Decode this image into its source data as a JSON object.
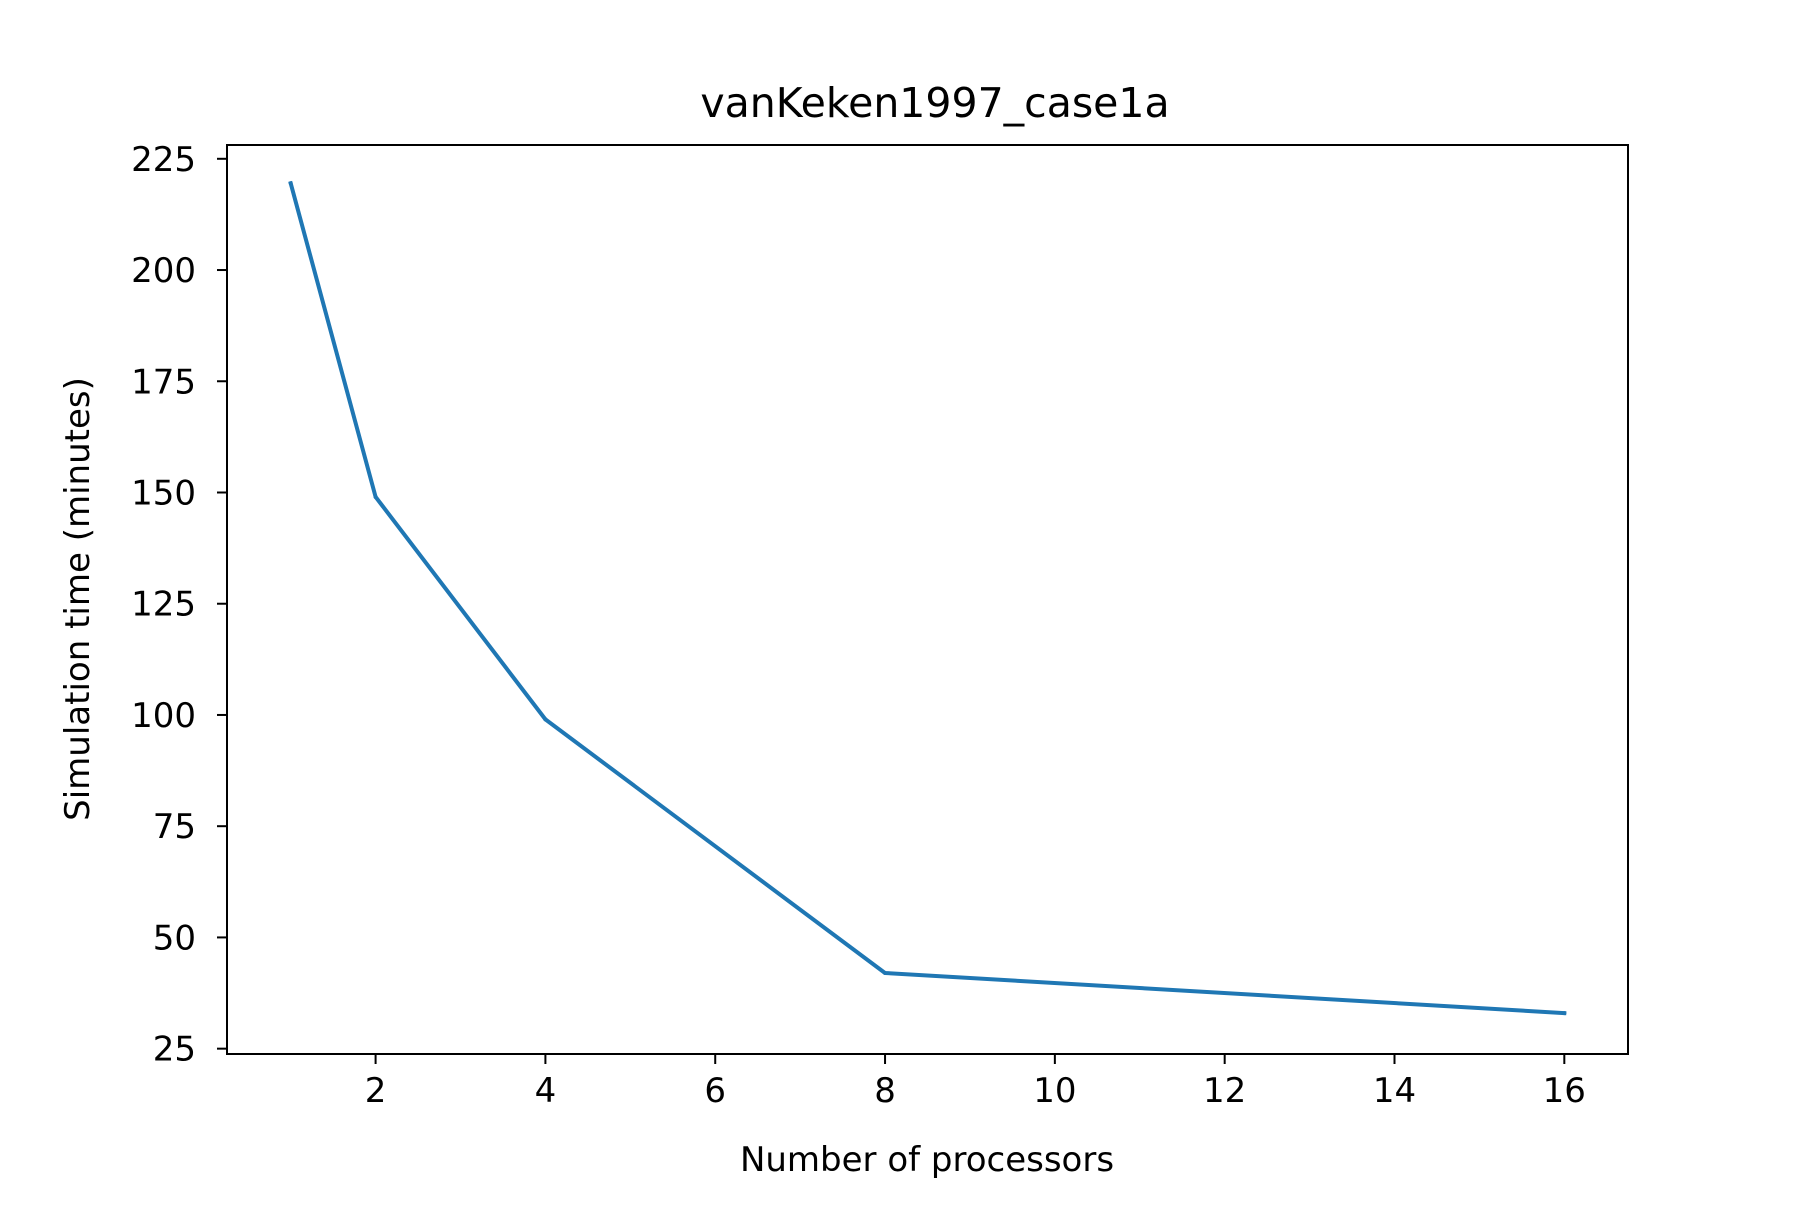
{
  "chart_data": {
    "type": "line",
    "title": "vanKeken1997_case1a",
    "xlabel": "Number of processors",
    "ylabel": "Simulation time (minutes)",
    "x_ticks": [
      2,
      4,
      6,
      8,
      10,
      12,
      14,
      16
    ],
    "y_ticks": [
      25,
      50,
      75,
      100,
      125,
      150,
      175,
      200,
      225
    ],
    "xlim": [
      0.25,
      16.75
    ],
    "ylim": [
      23.8,
      228.1
    ],
    "grid": false,
    "series": [
      {
        "color": "#1f77b4",
        "x": [
          1,
          2,
          4,
          8,
          16
        ],
        "y": [
          219.5,
          149,
          99,
          42,
          33
        ]
      }
    ]
  }
}
